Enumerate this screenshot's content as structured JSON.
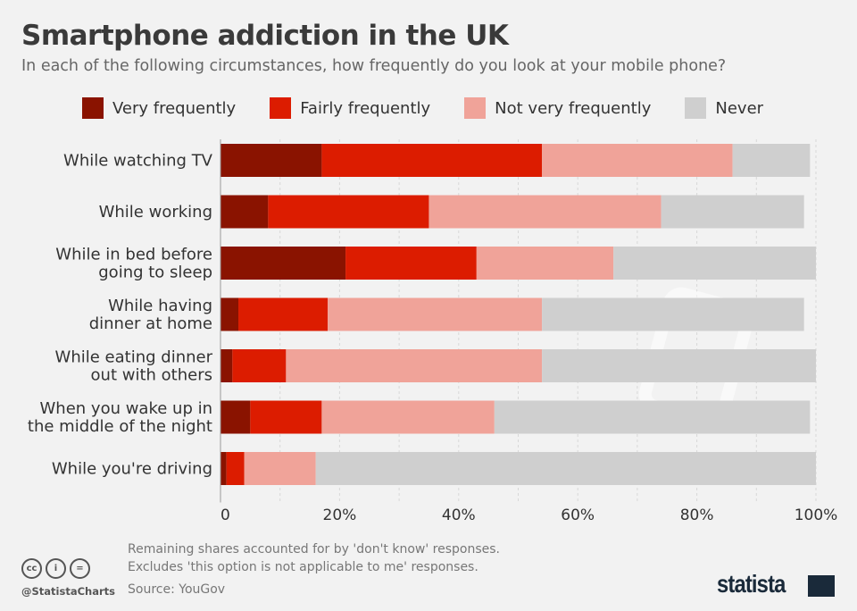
{
  "header": {
    "title": "Smartphone addiction in the UK",
    "subtitle": "In each of the following circumstances, how frequently do you look at your mobile phone?"
  },
  "chart_data": {
    "type": "bar",
    "orientation": "horizontal",
    "stacked": true,
    "title": "Smartphone addiction in the UK",
    "categories": [
      "While watching TV",
      "While working",
      "While in bed before going to sleep",
      "While having dinner at home",
      "While eating dinner out with others",
      "When you wake up in the middle of the night",
      "While you're driving"
    ],
    "category_lines": [
      [
        "While watching TV"
      ],
      [
        "While working"
      ],
      [
        "While in bed before",
        "going to sleep"
      ],
      [
        "While having",
        "dinner at home"
      ],
      [
        "While eating dinner",
        "out with others"
      ],
      [
        "When you wake up in",
        "the middle of the night"
      ],
      [
        "While you're driving"
      ]
    ],
    "series": [
      {
        "name": "Very frequently",
        "color": "#8a1300",
        "values": [
          17,
          8,
          21,
          3,
          2,
          5,
          1
        ]
      },
      {
        "name": "Fairly frequently",
        "color": "#dc1c00",
        "values": [
          37,
          27,
          22,
          15,
          9,
          12,
          3
        ]
      },
      {
        "name": "Not very frequently",
        "color": "#f0a399",
        "values": [
          32,
          39,
          23,
          36,
          43,
          29,
          12
        ]
      },
      {
        "name": "Never",
        "color": "#cfcfcf",
        "values": [
          13,
          24,
          34,
          44,
          46,
          53,
          84
        ]
      }
    ],
    "xlim": [
      0,
      100
    ],
    "x_ticks": [
      "0",
      "20%",
      "40%",
      "60%",
      "80%",
      "100%"
    ],
    "legend_position": "top",
    "grid": true
  },
  "footer": {
    "note1": "Remaining shares accounted for by 'don't know' responses.",
    "note2": "Excludes 'this option is not applicable to me' responses.",
    "source": "Source: YouGov",
    "handle": "@StatistaCharts",
    "logo": "statista",
    "cc_icons": [
      "cc",
      "by",
      "nd"
    ]
  }
}
